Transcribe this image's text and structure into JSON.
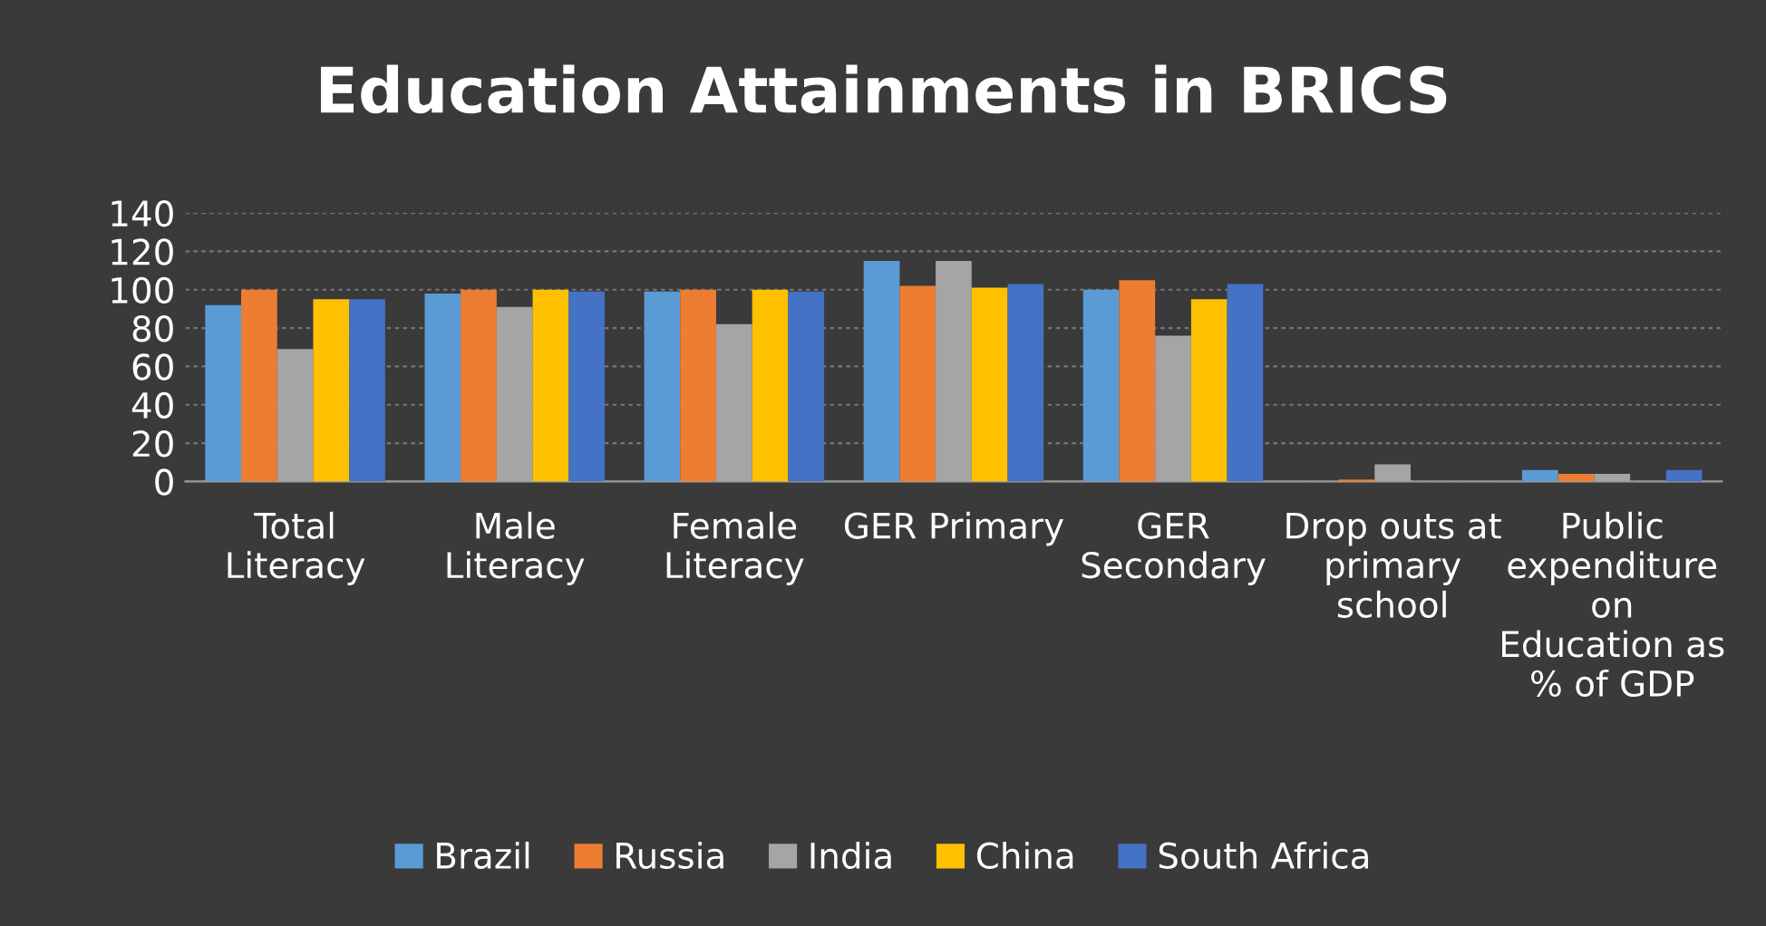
{
  "chart_data": {
    "type": "bar",
    "title": "Education Attainments in BRICS",
    "categories": [
      "Total\nLiteracy",
      "Male\nLiteracy",
      "Female\nLiteracy",
      "GER Primary",
      "GER\nSecondary",
      "Drop outs at\nprimary\nschool",
      "Public\nexpenditure\non\nEducation as\n% of GDP"
    ],
    "series": [
      {
        "name": "Brazil",
        "color": "#5b9bd5",
        "values": [
          92,
          98,
          99,
          115,
          100,
          null,
          6
        ]
      },
      {
        "name": "Russia",
        "color": "#ed7d31",
        "values": [
          100,
          100,
          100,
          102,
          105,
          1,
          4
        ]
      },
      {
        "name": "India",
        "color": "#a5a5a5",
        "values": [
          69,
          91,
          82,
          115,
          76,
          9,
          4
        ]
      },
      {
        "name": "China",
        "color": "#ffc000",
        "values": [
          95,
          100,
          100,
          101,
          95,
          null,
          null
        ]
      },
      {
        "name": "South Africa",
        "color": "#4472c4",
        "values": [
          95,
          99,
          99,
          103,
          103,
          null,
          6
        ]
      }
    ],
    "ylim": [
      0,
      140
    ],
    "yticks": [
      0,
      20,
      40,
      60,
      80,
      100,
      120,
      140
    ],
    "grid": "y",
    "legend": "bottom"
  }
}
